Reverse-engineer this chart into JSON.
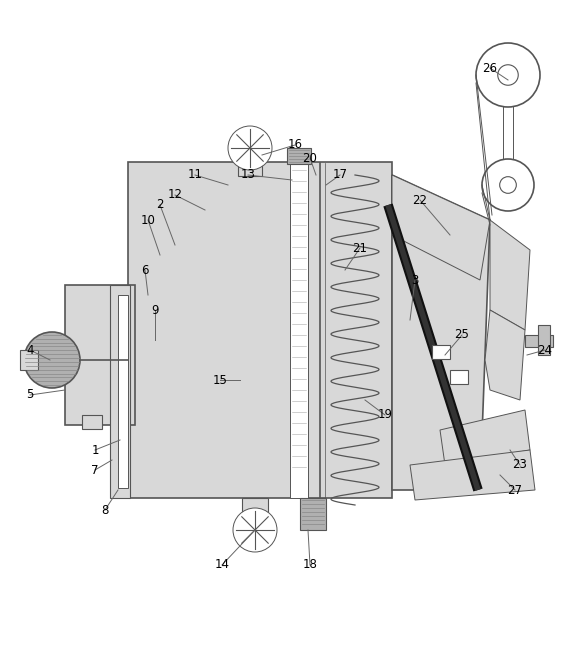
{
  "bg_color": "#ffffff",
  "lc": "#555555",
  "dk": "#111111",
  "gray_fill": "#b0b0b0",
  "light_gray": "#d8d8d8",
  "med_gray": "#c0c0c0",
  "figsize": [
    5.63,
    6.53
  ],
  "dpi": 100
}
